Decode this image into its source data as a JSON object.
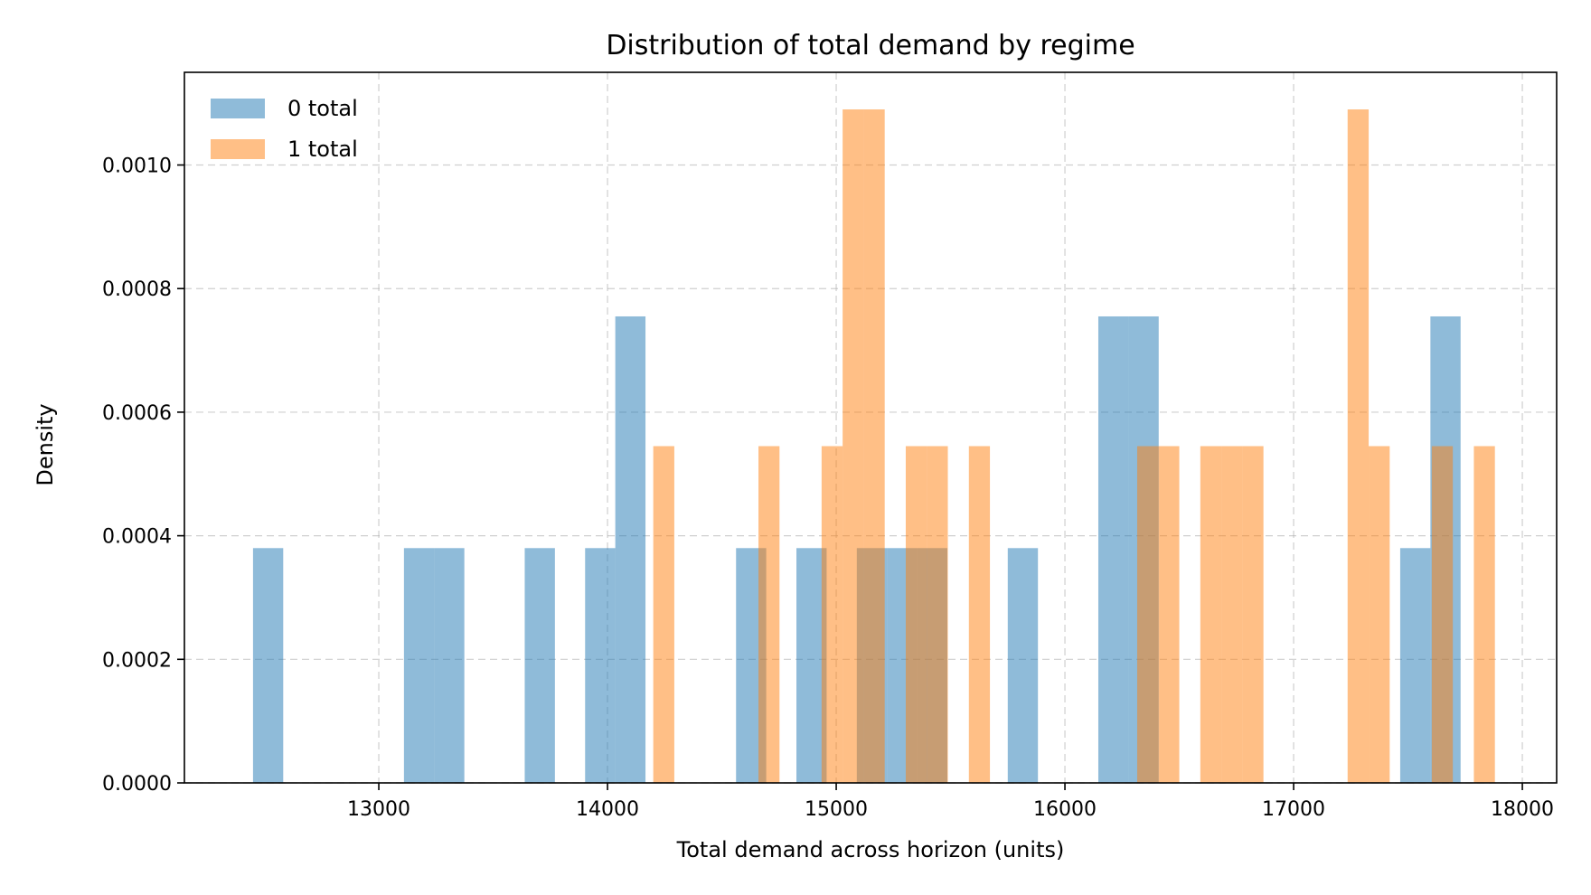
{
  "chart_data": {
    "type": "bar",
    "subtype": "histogram",
    "title": "Distribution of total demand by regime",
    "xlabel": "Total demand across horizon (units)",
    "ylabel": "Density",
    "xlim": [
      12150,
      18150
    ],
    "ylim": [
      0,
      0.00115
    ],
    "xticks": [
      13000,
      14000,
      15000,
      16000,
      17000,
      18000
    ],
    "yticks": [
      0.0,
      0.0002,
      0.0004,
      0.0006,
      0.0008,
      0.001
    ],
    "ytick_labels": [
      "0.0000",
      "0.0002",
      "0.0004",
      "0.0006",
      "0.0008",
      "0.0010"
    ],
    "grid": true,
    "legend_position": "top-left",
    "series": [
      {
        "name": "0 total",
        "color": "#1f77b4",
        "opacity": 0.5,
        "bins": [
          {
            "x0": 12450,
            "x1": 12582,
            "density": 0.00038
          },
          {
            "x0": 13110,
            "x1": 13242,
            "density": 0.00038
          },
          {
            "x0": 13242,
            "x1": 13374,
            "density": 0.00038
          },
          {
            "x0": 13638,
            "x1": 13770,
            "density": 0.00038
          },
          {
            "x0": 13902,
            "x1": 14034,
            "density": 0.00038
          },
          {
            "x0": 14034,
            "x1": 14166,
            "density": 0.000755
          },
          {
            "x0": 14562,
            "x1": 14694,
            "density": 0.00038
          },
          {
            "x0": 14826,
            "x1": 14958,
            "density": 0.00038
          },
          {
            "x0": 15090,
            "x1": 15222,
            "density": 0.00038
          },
          {
            "x0": 15222,
            "x1": 15354,
            "density": 0.00038
          },
          {
            "x0": 15354,
            "x1": 15486,
            "density": 0.00038
          },
          {
            "x0": 15750,
            "x1": 15882,
            "density": 0.00038
          },
          {
            "x0": 16146,
            "x1": 16278,
            "density": 0.000755
          },
          {
            "x0": 16278,
            "x1": 16410,
            "density": 0.000755
          },
          {
            "x0": 17466,
            "x1": 17598,
            "density": 0.00038
          },
          {
            "x0": 17598,
            "x1": 17730,
            "density": 0.000755
          }
        ]
      },
      {
        "name": "1 total",
        "color": "#ff7f0e",
        "opacity": 0.5,
        "bins": [
          {
            "x0": 14200,
            "x1": 14292,
            "density": 0.000545
          },
          {
            "x0": 14660,
            "x1": 14752,
            "density": 0.000545
          },
          {
            "x0": 14936,
            "x1": 15028,
            "density": 0.000545
          },
          {
            "x0": 15028,
            "x1": 15120,
            "density": 0.00109
          },
          {
            "x0": 15120,
            "x1": 15212,
            "density": 0.00109
          },
          {
            "x0": 15304,
            "x1": 15396,
            "density": 0.000545
          },
          {
            "x0": 15396,
            "x1": 15488,
            "density": 0.000545
          },
          {
            "x0": 15580,
            "x1": 15672,
            "density": 0.000545
          },
          {
            "x0": 16316,
            "x1": 16408,
            "density": 0.000545
          },
          {
            "x0": 16408,
            "x1": 16500,
            "density": 0.000545
          },
          {
            "x0": 16592,
            "x1": 16684,
            "density": 0.000545
          },
          {
            "x0": 16684,
            "x1": 16776,
            "density": 0.000545
          },
          {
            "x0": 16776,
            "x1": 16868,
            "density": 0.000545
          },
          {
            "x0": 17236,
            "x1": 17328,
            "density": 0.00109
          },
          {
            "x0": 17328,
            "x1": 17420,
            "density": 0.000545
          },
          {
            "x0": 17604,
            "x1": 17696,
            "density": 0.000545
          },
          {
            "x0": 17788,
            "x1": 17880,
            "density": 0.000545
          }
        ]
      }
    ]
  }
}
